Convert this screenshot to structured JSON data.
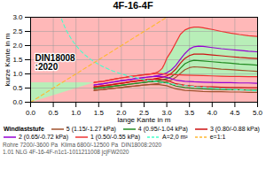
{
  "chart_data": {
    "type": "line",
    "title": "4F-16-4F",
    "xlabel": "lange Kante in m",
    "ylabel": "kurze Kante in m",
    "xlim": [
      0.0,
      5.0
    ],
    "ylim": [
      0.0,
      3.0
    ],
    "xticks": [
      {
        "value": 0,
        "label": "0.0"
      },
      0.5,
      {
        "value": 1,
        "label": "1.0"
      },
      1.5,
      {
        "value": 2,
        "label": "2.0"
      },
      2.5,
      {
        "value": 3,
        "label": "3.0"
      },
      3.5,
      {
        "value": 4,
        "label": "4.0"
      },
      4.5,
      {
        "value": 5,
        "label": "5.0"
      }
    ],
    "yticks": [
      {
        "value": 0,
        "label": "0.0"
      },
      0.5,
      {
        "value": 1,
        "label": "1.0"
      },
      1.5,
      {
        "value": 2,
        "label": "2.0"
      },
      2.5,
      {
        "value": 3,
        "label": "3.0"
      }
    ],
    "grid": true,
    "legend": "bottom",
    "legend_title": "Windlaststufe",
    "colors": [
      "#FFB8B8",
      "#B8EEB8"
    ],
    "annotations": [
      {
        "text": "DIN18008\n:2020"
      }
    ],
    "footnotes": [
      "Rohre 7200/-3600 Pa  Klima 6800/-12500 Pa  DIN18008:2020",
      "1.01 NLG 4F-16-4F-n1c1-1011211008 jcjFW2020"
    ],
    "series": [
      {
        "name": "5 (1.15/-1.27 kPa)",
        "color": "#A0522D",
        "type": "loop",
        "line_style": "solid",
        "branches": [
          {
            "x": [
              1.4,
              1.5,
              1.6,
              1.7,
              1.8,
              1.9,
              2.0,
              2.1,
              2.2,
              2.3,
              2.4,
              2.5,
              2.6,
              2.7,
              2.8,
              2.9,
              3.0,
              3.1,
              3.2,
              3.3,
              3.4,
              3.5,
              3.6,
              3.8,
              4.0,
              4.2,
              4.4,
              4.6,
              4.8,
              5.0
            ],
            "values": [
              0.42,
              0.44,
              0.45,
              0.47,
              0.49,
              0.5,
              0.52,
              0.54,
              0.56,
              0.57,
              0.59,
              0.61,
              0.62,
              0.64,
              0.66,
              0.69,
              0.72,
              0.78,
              0.88,
              1.02,
              1.15,
              1.22,
              1.25,
              1.23,
              1.2,
              1.17,
              1.15,
              1.13,
              1.11,
              1.09
            ]
          },
          {
            "x": [
              1.4,
              1.6,
              1.8,
              2.0,
              2.2,
              2.4,
              2.6,
              2.8,
              3.0,
              3.2,
              3.4,
              3.6,
              3.8,
              4.0,
              4.2,
              4.4,
              4.6,
              4.8,
              5.0
            ],
            "values": [
              0.42,
              0.45,
              0.49,
              0.52,
              0.56,
              0.59,
              0.62,
              0.63,
              0.58,
              0.47,
              0.42,
              0.4,
              0.38,
              0.37,
              0.37,
              0.36,
              0.36,
              0.35,
              0.35
            ]
          }
        ]
      },
      {
        "name": "4 (0.95/-1.04 kPa)",
        "color": "#228B22",
        "type": "loop",
        "line_style": "solid",
        "branches": [
          {
            "x": [
              1.4,
              1.5,
              1.6,
              1.7,
              1.8,
              1.9,
              2.0,
              2.1,
              2.2,
              2.3,
              2.4,
              2.5,
              2.6,
              2.7,
              2.8,
              2.9,
              3.0,
              3.1,
              3.2,
              3.3,
              3.4,
              3.5,
              3.6,
              3.8,
              4.0,
              4.2,
              4.4,
              4.6,
              4.8,
              5.0
            ],
            "values": [
              0.49,
              0.51,
              0.52,
              0.54,
              0.56,
              0.58,
              0.6,
              0.62,
              0.64,
              0.66,
              0.68,
              0.7,
              0.72,
              0.74,
              0.76,
              0.79,
              0.83,
              0.9,
              1.02,
              1.2,
              1.36,
              1.44,
              1.48,
              1.46,
              1.43,
              1.4,
              1.38,
              1.35,
              1.33,
              1.31
            ]
          },
          {
            "x": [
              1.4,
              1.6,
              1.8,
              2.0,
              2.2,
              2.4,
              2.6,
              2.8,
              3.0,
              3.2,
              3.4,
              3.6,
              3.8,
              4.0,
              4.2,
              4.4,
              4.6,
              4.8,
              5.0
            ],
            "values": [
              0.49,
              0.52,
              0.56,
              0.6,
              0.64,
              0.68,
              0.72,
              0.74,
              0.69,
              0.57,
              0.52,
              0.49,
              0.47,
              0.46,
              0.45,
              0.44,
              0.44,
              0.43,
              0.43
            ]
          }
        ]
      },
      {
        "name": "3 (0.80/-0.88 kPa)",
        "color": "#CC1111",
        "type": "loop",
        "line_style": "solid",
        "branches": [
          {
            "x": [
              1.4,
              1.5,
              1.6,
              1.7,
              1.8,
              1.9,
              2.0,
              2.1,
              2.2,
              2.3,
              2.4,
              2.5,
              2.6,
              2.7,
              2.8,
              2.9,
              3.0,
              3.1,
              3.2,
              3.3,
              3.4,
              3.5,
              3.6,
              3.8,
              4.0,
              4.2,
              4.4,
              4.6,
              4.8,
              5.0
            ],
            "values": [
              0.54,
              0.56,
              0.58,
              0.6,
              0.62,
              0.65,
              0.67,
              0.69,
              0.72,
              0.74,
              0.76,
              0.78,
              0.8,
              0.82,
              0.85,
              0.88,
              0.93,
              1.02,
              1.17,
              1.38,
              1.55,
              1.65,
              1.7,
              1.7,
              1.67,
              1.64,
              1.61,
              1.58,
              1.56,
              1.54
            ]
          },
          {
            "x": [
              1.4,
              1.6,
              1.8,
              2.0,
              2.2,
              2.4,
              2.6,
              2.8,
              3.0,
              3.2,
              3.4,
              3.6,
              3.8,
              4.0,
              4.2,
              4.4,
              4.6,
              4.8,
              5.0
            ],
            "values": [
              0.54,
              0.58,
              0.62,
              0.67,
              0.72,
              0.76,
              0.8,
              0.82,
              0.78,
              0.65,
              0.6,
              0.57,
              0.55,
              0.54,
              0.53,
              0.52,
              0.52,
              0.51,
              0.51
            ]
          }
        ]
      },
      {
        "name": "2 (0.65/-0.72 kPa)",
        "color": "#9400D3",
        "type": "loop",
        "line_style": "solid",
        "branches": [
          {
            "x": [
              1.4,
              1.5,
              1.6,
              1.7,
              1.8,
              1.9,
              2.0,
              2.1,
              2.2,
              2.3,
              2.4,
              2.5,
              2.6,
              2.7,
              2.8,
              2.9,
              3.0,
              3.1,
              3.2,
              3.3,
              3.4,
              3.5,
              3.6,
              3.7,
              3.8,
              4.0,
              4.2,
              4.4,
              4.6,
              4.8,
              5.0
            ],
            "values": [
              0.61,
              0.63,
              0.65,
              0.68,
              0.71,
              0.73,
              0.76,
              0.78,
              0.8,
              0.83,
              0.85,
              0.87,
              0.89,
              0.91,
              0.94,
              0.98,
              1.04,
              1.14,
              1.3,
              1.52,
              1.72,
              1.88,
              1.96,
              1.98,
              1.97,
              1.93,
              1.89,
              1.86,
              1.83,
              1.8,
              1.78
            ]
          },
          {
            "x": [
              1.4,
              1.6,
              1.8,
              2.0,
              2.2,
              2.4,
              2.6,
              2.8,
              3.0,
              3.2,
              3.4,
              3.6,
              3.8,
              4.0,
              4.2,
              4.4,
              4.6,
              4.8,
              5.0
            ],
            "values": [
              0.61,
              0.65,
              0.71,
              0.76,
              0.8,
              0.85,
              0.89,
              0.92,
              0.88,
              0.78,
              0.74,
              0.72,
              0.71,
              0.7,
              0.69,
              0.69,
              0.68,
              0.68,
              0.67
            ]
          }
        ]
      },
      {
        "name": "1 (0.50/-0.55 kPa)",
        "color": "#EE3333",
        "type": "loop",
        "line_style": "solid",
        "branches": [
          {
            "x": [
              1.4,
              1.5,
              1.6,
              1.7,
              1.8,
              1.9,
              2.0,
              2.1,
              2.2,
              2.3,
              2.4,
              2.5,
              2.6,
              2.65,
              2.7,
              2.75,
              2.8,
              2.85,
              2.9,
              2.95,
              3.0,
              3.1,
              3.2,
              3.3,
              3.4,
              3.5,
              3.6,
              3.7,
              3.8,
              3.9,
              4.0,
              4.2,
              4.4,
              4.6,
              4.8,
              5.0
            ],
            "values": [
              0.7,
              0.72,
              0.74,
              0.77,
              0.8,
              0.83,
              0.86,
              0.88,
              0.91,
              0.93,
              0.95,
              0.97,
              0.99,
              1.0,
              1.02,
              1.04,
              1.07,
              1.12,
              1.2,
              1.35,
              1.55,
              1.8,
              2.1,
              2.4,
              2.55,
              2.62,
              2.65,
              2.65,
              2.63,
              2.6,
              2.57,
              2.5,
              2.44,
              2.39,
              2.35,
              2.32
            ]
          },
          {
            "x": [
              1.4,
              1.5,
              1.6,
              1.7,
              1.8,
              1.9,
              2.0,
              2.2,
              2.4,
              2.6,
              2.8,
              3.0,
              3.2,
              3.4,
              3.6,
              3.8,
              4.0,
              4.2,
              4.4,
              4.6,
              4.8,
              5.0
            ],
            "values": [
              0.7,
              0.72,
              0.74,
              0.77,
              0.8,
              0.83,
              0.86,
              0.91,
              0.95,
              0.99,
              1.02,
              0.99,
              0.97,
              0.96,
              0.95,
              0.94,
              0.93,
              0.92,
              0.91,
              0.91,
              0.9,
              0.9
            ]
          }
        ]
      },
      {
        "name": "A=2,0 m²",
        "color": "#44FFCC",
        "type": "line",
        "line_style": "dashed",
        "x": [
          0.68,
          0.7,
          0.75,
          0.8,
          0.9,
          1.0,
          1.1,
          1.2,
          1.3,
          1.4,
          1.5,
          1.6,
          1.8,
          2.0,
          2.2,
          2.5,
          2.8,
          3.2,
          3.6,
          4.0,
          4.5,
          5.0
        ],
        "values": [
          2.9411764705882355,
          2.857142857142857,
          2.6666666666666665,
          2.5,
          2.2222222222222223,
          2.0,
          1.8181818181818181,
          1.6666666666666667,
          1.5384615384615385,
          1.4285714285714286,
          1.3333333333333333,
          1.25,
          1.1111111111111112,
          1.0,
          0.9090909090909091,
          0.8,
          0.7142857142857143,
          0.625,
          0.5555555555555556,
          0.5,
          0.4444444444444444,
          0.4
        ]
      },
      {
        "name": "e=1:1",
        "color": "#FFB830",
        "type": "line",
        "line_style": "dashed",
        "x": [
          0.0,
          3.0
        ],
        "values": [
          0.0,
          3.0
        ]
      }
    ]
  }
}
